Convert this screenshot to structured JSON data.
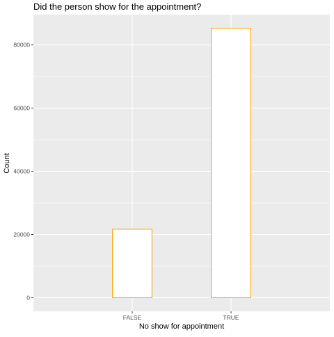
{
  "chart_data": {
    "type": "bar",
    "title": "Did the person show for the appointment?",
    "xlabel": "No show for appointment",
    "ylabel": "Count",
    "categories": [
      "FALSE",
      "TRUE"
    ],
    "values": [
      21680,
      85300
    ],
    "ylim": [
      -4300,
      89600
    ],
    "yticks": [
      0,
      20000,
      40000,
      60000,
      80000
    ],
    "ytick_labels": [
      "0",
      "20000",
      "40000",
      "60000",
      "80000"
    ],
    "grid": true,
    "legend": "none",
    "colors": {
      "panel_background": "#EBEBEB",
      "grid_major": "#FFFFFF",
      "grid_minor": "#F5F5F5",
      "bar_fill": "#FFFFFF",
      "bar_outline": "#FFA500",
      "tick_text": "#4D4D4D",
      "tick_mark": "#333333",
      "title_text": "#000000"
    }
  }
}
